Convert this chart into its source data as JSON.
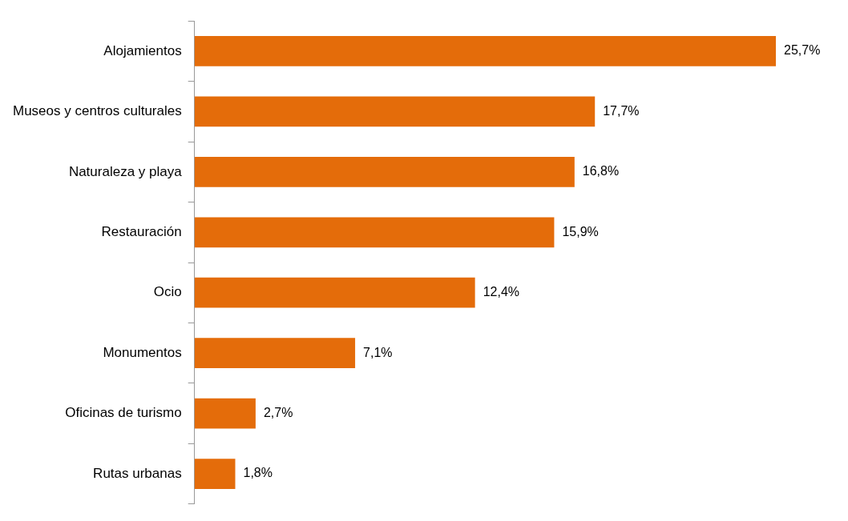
{
  "chart_data": {
    "type": "bar",
    "orientation": "horizontal",
    "tick_labels": "y",
    "grid": false,
    "legend": false,
    "categories": [
      "Alojamientos",
      "Museos y centros culturales",
      "Naturaleza y playa",
      "Restauración",
      "Ocio",
      "Monumentos",
      "Oficinas de turismo",
      "Rutas urbanas"
    ],
    "values": [
      25.7,
      17.7,
      16.8,
      15.9,
      12.4,
      7.1,
      2.7,
      1.8
    ],
    "value_labels": [
      "25,7%",
      "17,7%",
      "16,8%",
      "15,9%",
      "12,4%",
      "7,1%",
      "2,7%",
      "1,8%"
    ],
    "color": "#e46c0a"
  }
}
